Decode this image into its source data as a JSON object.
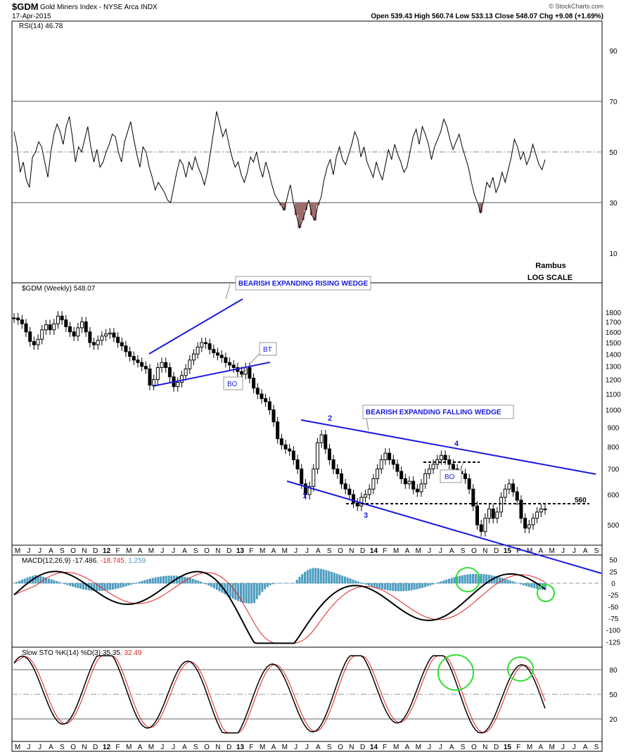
{
  "header": {
    "symbol": "$GDM",
    "name": "Gold Miners Index - NYSE Arca INDX",
    "date": "17-Apr-2015",
    "quote": "Open 539.43   High 560.74   Low 533.13   Close 548.07   Chg +9.08 (+1.69%)",
    "copyright": "© StockCharts.com"
  },
  "rsi": {
    "title": "RSI(14) 46.78",
    "ticks": [
      90,
      70,
      50,
      30,
      10
    ],
    "values": [
      58,
      52,
      42,
      46,
      39,
      36,
      48,
      50,
      54,
      52,
      46,
      40,
      50,
      57,
      61,
      58,
      53,
      60,
      64,
      56,
      46,
      52,
      50,
      55,
      60,
      52,
      46,
      51,
      44,
      46,
      50,
      53,
      57,
      56,
      50,
      46,
      54,
      58,
      62,
      55,
      49,
      44,
      52,
      50,
      44,
      40,
      35,
      38,
      36,
      34,
      31,
      30,
      36,
      42,
      47,
      45,
      40,
      46,
      43,
      48,
      44,
      41,
      37,
      42,
      50,
      58,
      66,
      61,
      56,
      59,
      53,
      48,
      44,
      46,
      41,
      38,
      42,
      48,
      46,
      50,
      44,
      40,
      46,
      42,
      37,
      33,
      31,
      29,
      27,
      32,
      37,
      30,
      25,
      20,
      23,
      27,
      31,
      25,
      23,
      29,
      32,
      39,
      44,
      47,
      41,
      48,
      52,
      47,
      45,
      49,
      53,
      58,
      55,
      48,
      52,
      46,
      43,
      40,
      46,
      42,
      39,
      45,
      51,
      47,
      53,
      49,
      46,
      42,
      44,
      50,
      56,
      59,
      53,
      60,
      57,
      53,
      47,
      52,
      55,
      58,
      63,
      60,
      55,
      51,
      54,
      57,
      52,
      48,
      44,
      38,
      33,
      30,
      26,
      31,
      38,
      36,
      40,
      34,
      37,
      42,
      38,
      43,
      48,
      55,
      52,
      47,
      50,
      45,
      48,
      53,
      49,
      45,
      43,
      47
    ],
    "annotation_line1": "Rambus",
    "annotation_line2": "LOG SCALE"
  },
  "price": {
    "title": "$GDM (Weekly) 548.07",
    "ticks": [
      1800,
      1700,
      1600,
      1500,
      1400,
      1300,
      1200,
      1100,
      1000,
      900,
      800,
      700,
      600,
      500
    ],
    "closes": [
      1740,
      1720,
      1680,
      1600,
      1510,
      1480,
      1530,
      1620,
      1670,
      1620,
      1680,
      1760,
      1720,
      1650,
      1600,
      1560,
      1640,
      1700,
      1600,
      1500,
      1480,
      1520,
      1560,
      1580,
      1590,
      1550,
      1500,
      1470,
      1420,
      1380,
      1350,
      1330,
      1300,
      1280,
      1160,
      1200,
      1290,
      1330,
      1290,
      1220,
      1150,
      1180,
      1230,
      1280,
      1350,
      1400,
      1460,
      1500,
      1490,
      1440,
      1410,
      1390,
      1370,
      1330,
      1310,
      1290,
      1260,
      1240,
      1290,
      1210,
      1140,
      1100,
      1070,
      1050,
      1000,
      930,
      840,
      810,
      790,
      780,
      740,
      700,
      640,
      600,
      630,
      700,
      820,
      860,
      790,
      740,
      700,
      680,
      640,
      620,
      600,
      570,
      560,
      590,
      600,
      620,
      660,
      700,
      740,
      770,
      740,
      720,
      690,
      660,
      640,
      650,
      620,
      610,
      640,
      680,
      700,
      720,
      740,
      760,
      740,
      720,
      700,
      690,
      680,
      660,
      620,
      560,
      500,
      480,
      520,
      550,
      520,
      540,
      590,
      620,
      640,
      610,
      580,
      520,
      490,
      500,
      520,
      540,
      550,
      548
    ],
    "labels": {
      "rising_wedge": "BEARISH EXPANDING RISING WEDGE",
      "falling_wedge": "BEARISH EXPANDING FALLING WEDGE",
      "bt": "BT",
      "bo1": "BO",
      "bo2": "BO",
      "p1": "1",
      "p2": "2",
      "p3": "3",
      "p4": "4",
      "level560": "560"
    }
  },
  "months": [
    "M",
    "J",
    "J",
    "A",
    "S",
    "O",
    "N",
    "D",
    "12",
    "F",
    "M",
    "A",
    "M",
    "J",
    "J",
    "A",
    "S",
    "O",
    "N",
    "D",
    "13",
    "F",
    "M",
    "A",
    "M",
    "J",
    "J",
    "A",
    "S",
    "O",
    "N",
    "D",
    "14",
    "F",
    "M",
    "A",
    "M",
    "J",
    "J",
    "A",
    "S",
    "O",
    "N",
    "D",
    "15",
    "F",
    "M",
    "A",
    "M",
    "J",
    "J",
    "A",
    "S"
  ],
  "macd": {
    "title_main": "MACD(12,26,9)",
    "title_macd": "-17.486",
    "title_signal": ", -18.745",
    "title_hist": ", 1.259",
    "ticks": [
      50,
      25,
      0,
      -25,
      -50,
      -75,
      -100,
      -125
    ]
  },
  "sto": {
    "title_main": "Slow STO %K(14) %D(3)",
    "title_k": "35.35",
    "title_d": ", 32.49",
    "ticks": [
      80,
      50,
      20
    ]
  },
  "chart_data": {
    "type": "line",
    "title": "$GDM (Weekly) 548.07",
    "price_scale": "log",
    "price_ylim": [
      450,
      1850
    ],
    "rsi_ylim": [
      0,
      100
    ],
    "macd_ylim": [
      -140,
      60
    ],
    "sto_ylim": [
      0,
      100
    ],
    "last_close": 548.07,
    "rsi_last": 46.78,
    "macd_last": -17.486,
    "signal_last": -18.745,
    "hist_last": 1.259,
    "sto_k_last": 35.35,
    "sto_d_last": 32.49
  },
  "colors": {
    "wedge": "#1a1adf",
    "macd_hist": "#4a9bbf",
    "signal": "#e02020",
    "rsi_fill": "#9e6c6c",
    "circle": "#33dd33",
    "grid": "#dddddd"
  }
}
